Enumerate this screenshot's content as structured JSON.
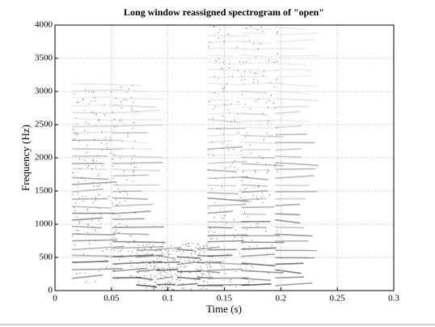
{
  "chart_data": {
    "type": "spectrogram",
    "title": "Long window reassigned spectrogram of \"open\"",
    "x_label": "Time (s)",
    "y_label": "Frequency (Hz)",
    "xlim": [
      0,
      0.3
    ],
    "xticks": [
      0,
      0.05,
      0.1,
      0.15,
      0.2,
      0.25,
      0.3
    ],
    "ylim": [
      0,
      4000
    ],
    "yticks": [
      0,
      500,
      1000,
      1500,
      2000,
      2500,
      3000,
      3500,
      4000
    ],
    "grid": true
  }
}
